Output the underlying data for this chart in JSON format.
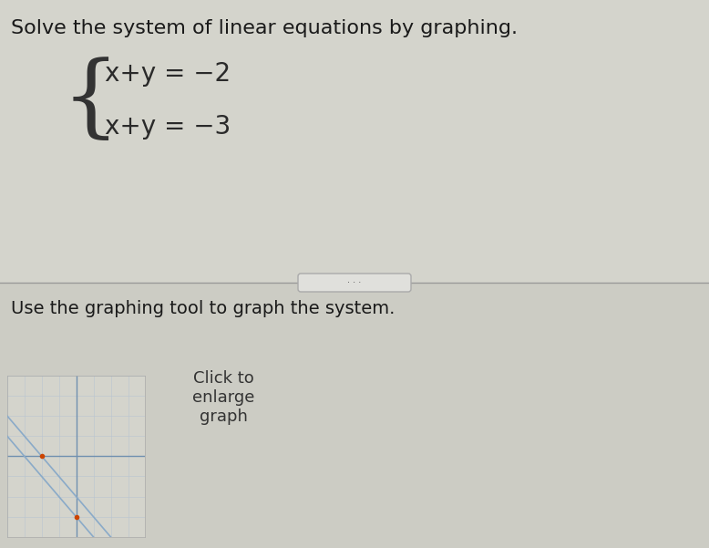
{
  "title": "Solve the system of linear equations by graphing.",
  "title_fontsize": 16,
  "title_color": "#1a1a1a",
  "eq1": "x+y = −2",
  "eq2": "x+y = −3",
  "use_text": "Use the graphing tool to graph the system.",
  "use_text_fontsize": 14,
  "click_text": "Click to\nenlarge\ngraph",
  "click_fontsize": 13,
  "bg_color": "#ccccc4",
  "divider_color": "#999999",
  "graph_bg": "#d4d4cc",
  "line1_color": "#8aaac8",
  "line2_color": "#8aaac8",
  "dot_color": "#cc4400",
  "eq_fontsize": 20,
  "brace_fontsize": 72
}
